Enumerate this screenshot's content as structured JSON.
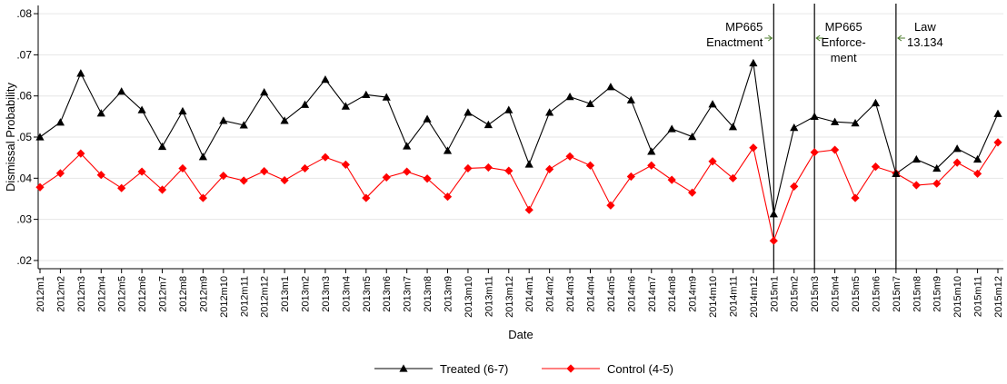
{
  "chart_data": {
    "type": "line",
    "xlabel": "Date",
    "ylabel": "Dismissal Probability",
    "ylim": [
      0.018,
      0.082
    ],
    "yticks": [
      ".02",
      ".03",
      ".04",
      ".05",
      ".06",
      ".07",
      ".08"
    ],
    "ytick_values": [
      0.02,
      0.03,
      0.04,
      0.05,
      0.06,
      0.07,
      0.08
    ],
    "grid": true,
    "legend_position": "bottom",
    "categories": [
      "2012m1",
      "2012m2",
      "2012m3",
      "2012m4",
      "2012m5",
      "2012m6",
      "2012m7",
      "2012m8",
      "2012m9",
      "2012m10",
      "2012m11",
      "2012m12",
      "2013m1",
      "2013m2",
      "2013m3",
      "2013m4",
      "2013m5",
      "2013m6",
      "2013m7",
      "2013m8",
      "2013m9",
      "2013m10",
      "2013m11",
      "2013m12",
      "2014m1",
      "2014m2",
      "2014m3",
      "2014m4",
      "2014m5",
      "2014m6",
      "2014m7",
      "2014m8",
      "2014m9",
      "2014m10",
      "2014m11",
      "2014m12",
      "2015m1",
      "2015m2",
      "2015m3",
      "2015m4",
      "2015m5",
      "2015m6",
      "2015m7",
      "2015m8",
      "2015m9",
      "2015m10",
      "2015m11",
      "2015m12"
    ],
    "series": [
      {
        "name": "Treated (6-7)",
        "color": "#000000",
        "marker": "triangle",
        "values": [
          0.05,
          0.0536,
          0.0655,
          0.0558,
          0.0611,
          0.0566,
          0.0477,
          0.0563,
          0.0452,
          0.054,
          0.0529,
          0.0609,
          0.054,
          0.0579,
          0.064,
          0.0575,
          0.0603,
          0.0597,
          0.0478,
          0.0544,
          0.0467,
          0.056,
          0.053,
          0.0566,
          0.0434,
          0.056,
          0.0598,
          0.0581,
          0.0622,
          0.059,
          0.0465,
          0.052,
          0.0501,
          0.058,
          0.0525,
          0.068,
          0.0313,
          0.0523,
          0.055,
          0.0537,
          0.0534,
          0.0583,
          0.0411,
          0.0446,
          0.0424,
          0.0472,
          0.0446,
          0.0557
        ]
      },
      {
        "name": "Control (4-5)",
        "color": "#ff0000",
        "marker": "diamond",
        "values": [
          0.0378,
          0.0412,
          0.046,
          0.0408,
          0.0376,
          0.0416,
          0.0372,
          0.0424,
          0.0352,
          0.0406,
          0.0394,
          0.0417,
          0.0395,
          0.0424,
          0.0451,
          0.0433,
          0.0352,
          0.0402,
          0.0416,
          0.0399,
          0.0355,
          0.0424,
          0.0426,
          0.0418,
          0.0323,
          0.0422,
          0.0453,
          0.0431,
          0.0334,
          0.0404,
          0.0431,
          0.0396,
          0.0365,
          0.0441,
          0.04,
          0.0474,
          0.0248,
          0.038,
          0.0463,
          0.0469,
          0.0352,
          0.0428,
          0.0412,
          0.0383,
          0.0387,
          0.0438,
          0.0411,
          0.0487
        ]
      }
    ],
    "vlines": [
      {
        "at": "2015m1",
        "label_lines": [
          "MP665",
          "Enactment"
        ],
        "label_side": "left"
      },
      {
        "at": "2015m3",
        "label_lines": [
          "MP665",
          "Enforce-",
          "ment"
        ],
        "label_side": "right"
      },
      {
        "at": "2015m7",
        "label_lines": [
          "Law",
          "13.134"
        ],
        "label_side": "right"
      }
    ]
  }
}
